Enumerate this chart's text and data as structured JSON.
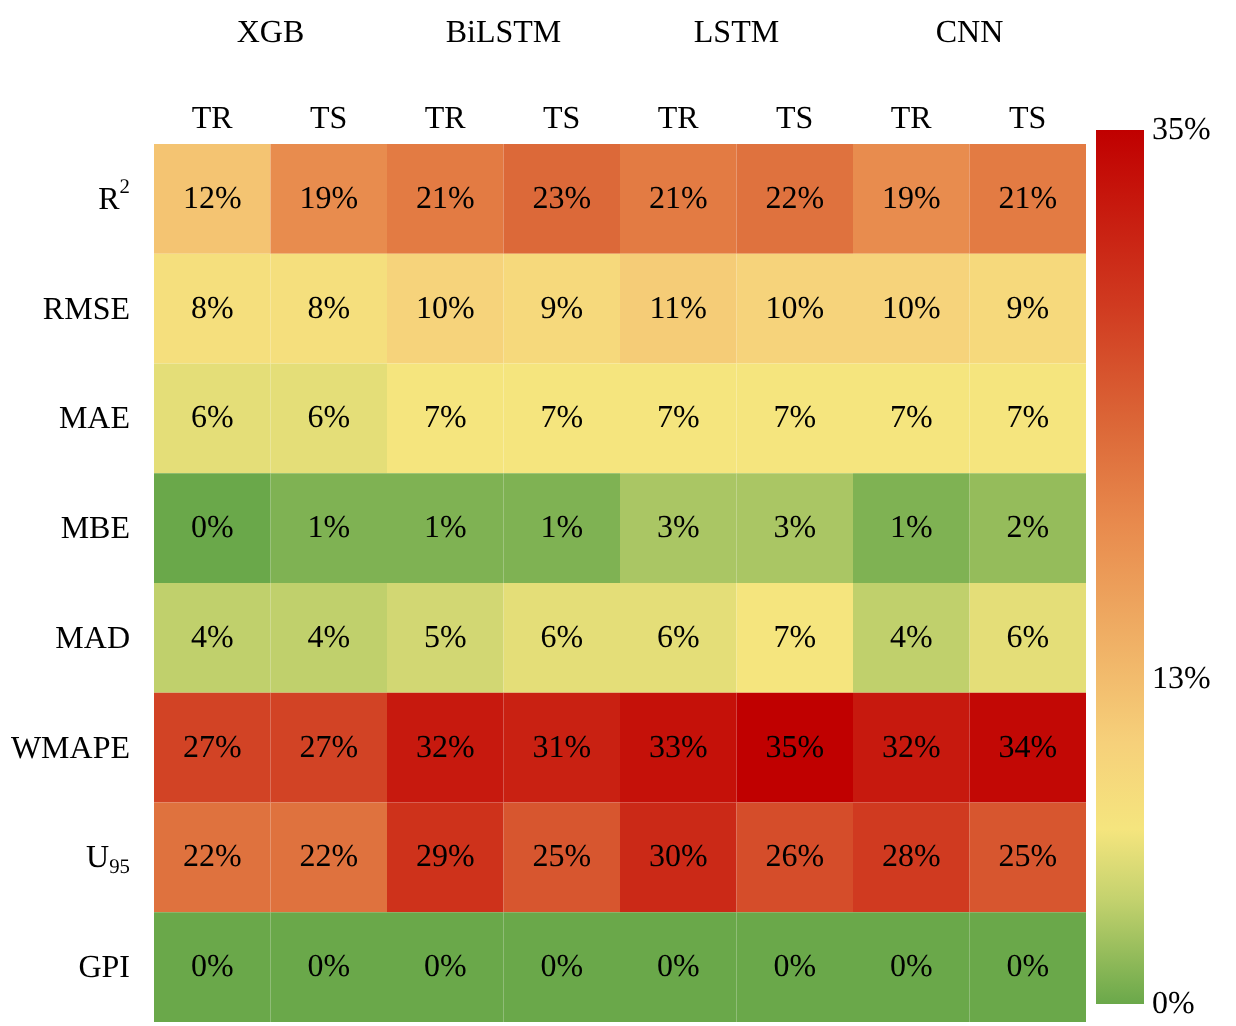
{
  "chart_data": {
    "type": "heatmap",
    "categories": [
      "TR",
      "TS",
      "TR",
      "TS",
      "TR",
      "TS",
      "TR",
      "TS"
    ],
    "y_categories": [
      "R$^{2}$",
      "RMSE",
      "MAE",
      "MBE",
      "MAD",
      "WMAPE",
      "U$_{95}$",
      "GPI"
    ],
    "cells": [
      [
        12,
        19,
        21,
        23,
        21,
        22,
        19,
        21
      ],
      [
        8,
        8,
        10,
        9,
        11,
        10,
        10,
        9
      ],
      [
        6,
        6,
        7,
        7,
        7,
        7,
        7,
        7
      ],
      [
        0,
        1,
        1,
        1,
        3,
        3,
        1,
        2
      ],
      [
        4,
        4,
        5,
        6,
        6,
        7,
        4,
        6
      ],
      [
        27,
        27,
        32,
        31,
        33,
        35,
        32,
        34
      ],
      [
        22,
        22,
        29,
        25,
        30,
        26,
        28,
        25
      ],
      [
        0,
        0,
        0,
        0,
        0,
        0,
        0,
        0
      ]
    ],
    "cell_labels": [
      [
        "12%",
        "19%",
        "21%",
        "23%",
        "21%",
        "22%",
        "19%",
        "21%"
      ],
      [
        "8%",
        "8%",
        "10%",
        "9%",
        "11%",
        "10%",
        "10%",
        "9%"
      ],
      [
        "6%",
        "6%",
        "7%",
        "7%",
        "7%",
        "7%",
        "7%",
        "7%"
      ],
      [
        "0%",
        "1%",
        "1%",
        "1%",
        "3%",
        "3%",
        "1%",
        "2%"
      ],
      [
        "4%",
        "4%",
        "5%",
        "6%",
        "6%",
        "7%",
        "4%",
        "6%"
      ],
      [
        "27%",
        "27%",
        "32%",
        "31%",
        "33%",
        "35%",
        "32%",
        "34%"
      ],
      [
        "22%",
        "22%",
        "29%",
        "25%",
        "30%",
        "26%",
        "28%",
        "25%"
      ],
      [
        "0%",
        "0%",
        "0%",
        "0%",
        "0%",
        "0%",
        "0%",
        "0%"
      ]
    ],
    "clim": [
      0,
      35
    ],
    "cticks": [
      {
        "value": 0,
        "label": "0%"
      },
      {
        "value": 13,
        "label": "13%"
      },
      {
        "value": 35,
        "label": "35%"
      }
    ],
    "annotations": [
      "XGB",
      "BiLSTM",
      "LSTM",
      "CNN"
    ]
  }
}
